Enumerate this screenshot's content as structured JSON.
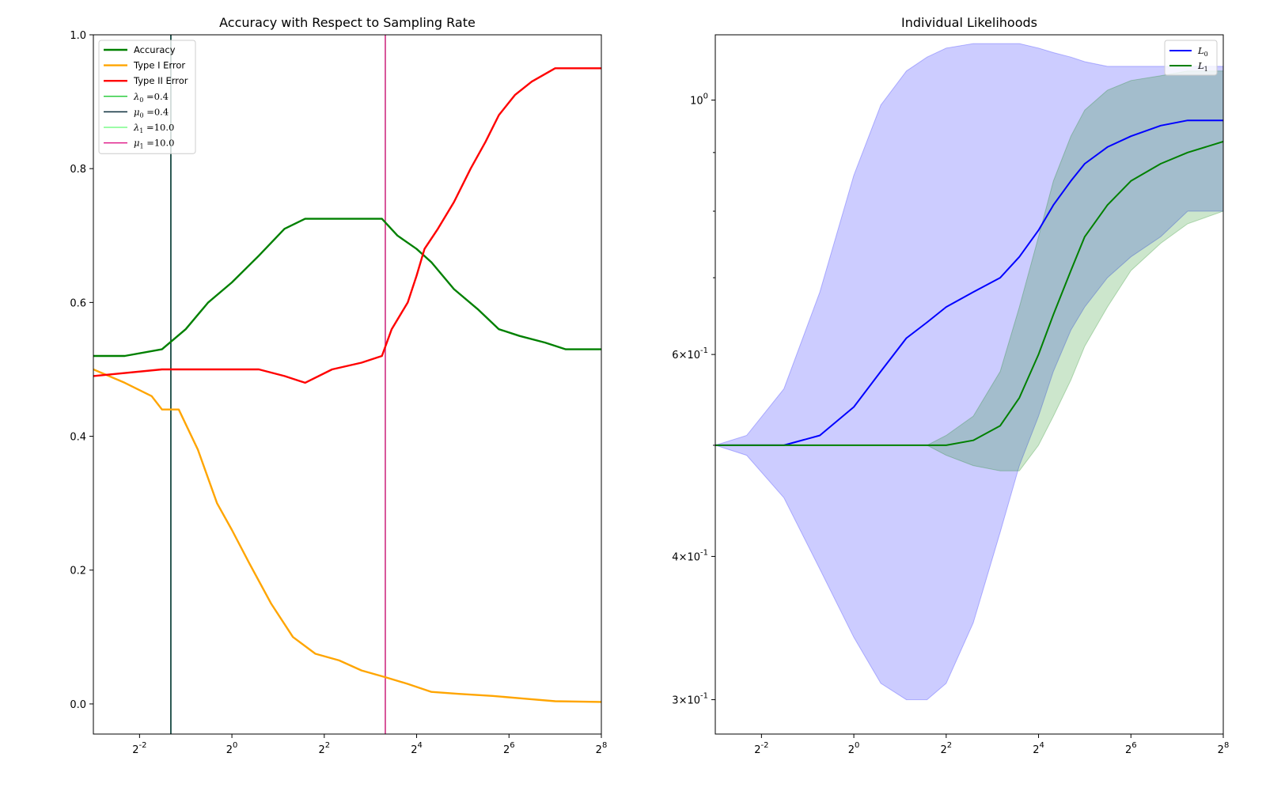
{
  "chart_data": [
    {
      "type": "line",
      "title": "Accuracy with Respect to Sampling Rate",
      "xlabel": "",
      "ylabel": "",
      "xscale": "log2",
      "xlim": [
        0.125,
        256
      ],
      "ylim": [
        -0.045,
        1.0
      ],
      "xticks": [
        0.25,
        1,
        4,
        16,
        64,
        256
      ],
      "xtick_labels": [
        "2^-2",
        "2^0",
        "2^2",
        "2^4",
        "2^6",
        "2^8"
      ],
      "yticks": [
        0.0,
        0.2,
        0.4,
        0.6,
        0.8,
        1.0
      ],
      "ytick_labels": [
        "0.0",
        "0.2",
        "0.4",
        "0.6",
        "0.8",
        "1.0"
      ],
      "legend_position": "top-left",
      "grid": false,
      "series": [
        {
          "name": "Accuracy",
          "color": "#008000",
          "x": [
            0.125,
            0.2,
            0.35,
            0.5,
            0.7,
            1.0,
            1.5,
            2.2,
            3.0,
            4.0,
            6.0,
            9.5,
            12,
            16,
            20,
            28,
            40,
            55,
            75,
            110,
            150,
            256
          ],
          "y": [
            0.52,
            0.52,
            0.53,
            0.56,
            0.6,
            0.63,
            0.67,
            0.71,
            0.725,
            0.725,
            0.725,
            0.725,
            0.7,
            0.68,
            0.66,
            0.62,
            0.59,
            0.56,
            0.55,
            0.54,
            0.53,
            0.53
          ]
        },
        {
          "name": "Type I Error",
          "color": "#FFA500",
          "x": [
            0.125,
            0.2,
            0.3,
            0.35,
            0.45,
            0.6,
            0.8,
            1.0,
            1.3,
            1.8,
            2.5,
            3.5,
            5,
            7,
            10,
            14,
            20,
            30,
            50,
            80,
            128,
            256
          ],
          "y": [
            0.5,
            0.48,
            0.46,
            0.44,
            0.44,
            0.38,
            0.3,
            0.26,
            0.21,
            0.15,
            0.1,
            0.075,
            0.065,
            0.05,
            0.04,
            0.03,
            0.018,
            0.015,
            0.012,
            0.008,
            0.004,
            0.003
          ]
        },
        {
          "name": "Type II Error",
          "color": "#FF0000",
          "x": [
            0.125,
            0.35,
            0.8,
            1.5,
            2.2,
            3.0,
            4.5,
            7,
            9.5,
            11,
            14,
            16,
            18,
            22,
            28,
            36,
            45,
            55,
            70,
            90,
            128,
            256
          ],
          "y": [
            0.49,
            0.5,
            0.5,
            0.5,
            0.49,
            0.48,
            0.5,
            0.51,
            0.52,
            0.56,
            0.6,
            0.64,
            0.68,
            0.71,
            0.75,
            0.8,
            0.84,
            0.88,
            0.91,
            0.93,
            0.95,
            0.95
          ]
        }
      ],
      "reference_lines": [
        {
          "name": "λ0 =0.4",
          "label_tex": "λ",
          "sub": "0",
          "value": "=0.4",
          "x": 0.4,
          "color": "#2ECC40"
        },
        {
          "name": "μ0 =0.4",
          "label_tex": "μ",
          "sub": "0",
          "value": "=0.4",
          "x": 0.4,
          "color": "#0B2E3B"
        },
        {
          "name": "λ1 =10.0",
          "label_tex": "λ",
          "sub": "1",
          "value": "=10.0",
          "x": 10.0,
          "color": "#7CFC8A"
        },
        {
          "name": "μ1 =10.0",
          "label_tex": "μ",
          "sub": "1",
          "value": "=10.0",
          "x": 10.0,
          "color": "#E0208C"
        }
      ]
    },
    {
      "type": "area",
      "title": "Individual Likelihoods",
      "xlabel": "",
      "ylabel": "",
      "xscale": "log2",
      "yscale": "log",
      "xlim": [
        0.125,
        256
      ],
      "ylim": [
        0.28,
        1.14
      ],
      "xticks": [
        0.25,
        1,
        4,
        16,
        64,
        256
      ],
      "xtick_labels": [
        "2^-2",
        "2^0",
        "2^2",
        "2^4",
        "2^6",
        "2^8"
      ],
      "yticks_major": [
        0.3,
        0.4,
        0.6,
        1.0
      ],
      "ytick_labels": [
        "3×10^-1",
        "4×10^-1",
        "6×10^-1",
        "10^0"
      ],
      "legend_position": "top-right",
      "grid": false,
      "series": [
        {
          "name": "L0",
          "color": "#0000FF",
          "x": [
            0.125,
            0.2,
            0.35,
            0.6,
            1.0,
            1.5,
            2.2,
            3.0,
            4.0,
            6.0,
            9.0,
            12,
            16,
            20,
            26,
            32,
            45,
            64,
            100,
            150,
            256
          ],
          "y": [
            0.5,
            0.5,
            0.5,
            0.51,
            0.54,
            0.58,
            0.62,
            0.64,
            0.66,
            0.68,
            0.7,
            0.73,
            0.77,
            0.81,
            0.85,
            0.88,
            0.91,
            0.93,
            0.95,
            0.96,
            0.96
          ],
          "band_lower": [
            0.5,
            0.49,
            0.45,
            0.39,
            0.34,
            0.31,
            0.3,
            0.3,
            0.31,
            0.35,
            0.42,
            0.48,
            0.53,
            0.58,
            0.63,
            0.66,
            0.7,
            0.73,
            0.76,
            0.8,
            0.8
          ],
          "band_upper": [
            0.5,
            0.51,
            0.56,
            0.68,
            0.86,
            0.99,
            1.06,
            1.09,
            1.11,
            1.12,
            1.12,
            1.12,
            1.11,
            1.1,
            1.09,
            1.08,
            1.07,
            1.07,
            1.07,
            1.07,
            1.07
          ]
        },
        {
          "name": "L1",
          "color": "#008000",
          "x": [
            0.125,
            0.2,
            0.35,
            0.6,
            1.0,
            1.5,
            2.2,
            3.0,
            4.0,
            6.0,
            9.0,
            12,
            16,
            20,
            26,
            32,
            45,
            64,
            100,
            150,
            256
          ],
          "y": [
            0.5,
            0.5,
            0.5,
            0.5,
            0.5,
            0.5,
            0.5,
            0.5,
            0.5,
            0.505,
            0.52,
            0.55,
            0.6,
            0.65,
            0.71,
            0.76,
            0.81,
            0.85,
            0.88,
            0.9,
            0.92
          ],
          "band_lower": [
            0.5,
            0.5,
            0.5,
            0.5,
            0.5,
            0.5,
            0.5,
            0.5,
            0.49,
            0.48,
            0.475,
            0.475,
            0.5,
            0.53,
            0.57,
            0.61,
            0.66,
            0.71,
            0.75,
            0.78,
            0.8
          ],
          "band_upper": [
            0.5,
            0.5,
            0.5,
            0.5,
            0.5,
            0.5,
            0.5,
            0.5,
            0.51,
            0.53,
            0.58,
            0.66,
            0.76,
            0.85,
            0.93,
            0.98,
            1.02,
            1.04,
            1.05,
            1.06,
            1.06
          ]
        }
      ]
    }
  ]
}
